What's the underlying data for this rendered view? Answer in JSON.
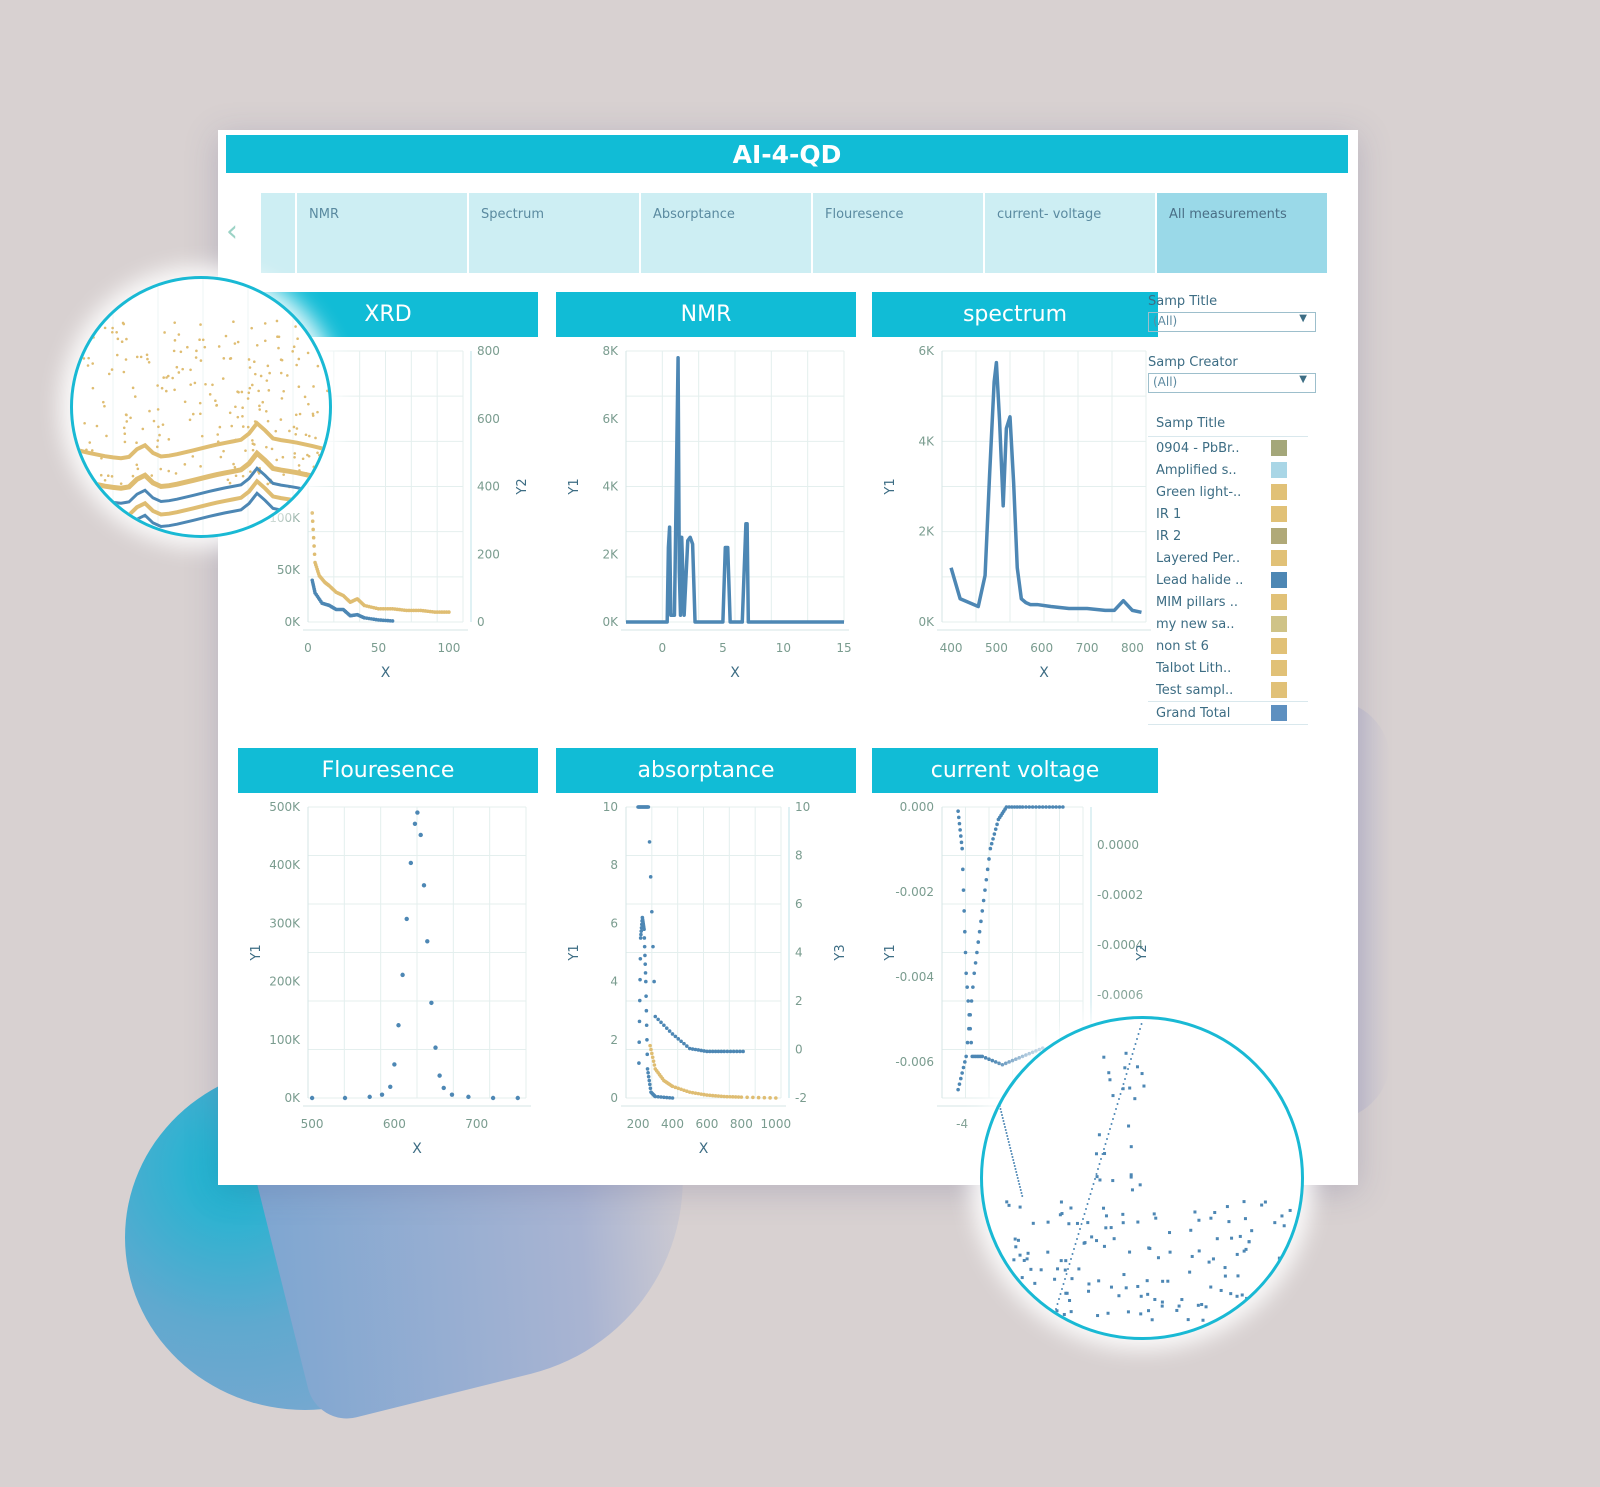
{
  "app": {
    "title": "AI-4-QD"
  },
  "nav": {
    "tabs": [
      {
        "label": "NMR"
      },
      {
        "label": "Spectrum"
      },
      {
        "label": "Absorptance"
      },
      {
        "label": "Flouresence"
      },
      {
        "label": "current- voltage"
      },
      {
        "label": "All measurements",
        "active": true
      }
    ],
    "prev_icon": "chevron-left-icon",
    "next_icon": "chevron-right-icon"
  },
  "filters": {
    "samp_title": {
      "label": "Samp Title",
      "value": "(All)"
    },
    "samp_creator": {
      "label": "Samp Creator",
      "value": "(All)"
    }
  },
  "legend": {
    "title": "Samp Title",
    "items": [
      {
        "label": "0904 - PbBr..",
        "color": "#a4a77a"
      },
      {
        "label": "Amplified s..",
        "color": "#a9d6e6"
      },
      {
        "label": "Green light-..",
        "color": "#e1c177"
      },
      {
        "label": "IR 1",
        "color": "#e1c177"
      },
      {
        "label": "IR 2",
        "color": "#b0a978"
      },
      {
        "label": "Layered Per..",
        "color": "#e1c177"
      },
      {
        "label": "Lead halide ..",
        "color": "#4d87b4"
      },
      {
        "label": "MIM pillars ..",
        "color": "#e1c177"
      },
      {
        "label": "my new sa..",
        "color": "#cfc387"
      },
      {
        "label": "non st 6",
        "color": "#e1c177"
      },
      {
        "label": "Talbot Lith..",
        "color": "#e1c177"
      },
      {
        "label": "Test sampl..",
        "color": "#e1c177"
      }
    ],
    "total": {
      "label": "Grand Total",
      "color": "#5e90c0"
    }
  },
  "colors": {
    "accent": "#11bcd6",
    "blue": "#4d87b4",
    "gold": "#dfbd72",
    "tab": "#cdeef3",
    "tab_active": "#9ad9e8"
  },
  "chart_data": [
    {
      "type": "scatter",
      "title": "XRD",
      "xlabel": "X",
      "ylabel": "",
      "y2label": "Y2",
      "xlim": [
        0,
        110
      ],
      "xticks": [
        "0",
        "50",
        "100"
      ],
      "yticks": [
        "0K",
        "50K",
        "100K"
      ],
      "y2ticks": [
        "0",
        "200",
        "400",
        "600",
        "800"
      ],
      "series": [
        {
          "color": "#4d87b4",
          "x": [
            3,
            5,
            10,
            15,
            20,
            25,
            30,
            35,
            40,
            50,
            60
          ],
          "y": [
            20000,
            14000,
            9000,
            8000,
            6000,
            6000,
            3000,
            3500,
            2000,
            1000,
            500
          ]
        },
        {
          "color": "#dfbd72",
          "x": [
            3,
            5,
            8,
            12,
            15,
            20,
            25,
            30,
            35,
            40,
            50,
            60,
            70,
            80,
            90,
            100
          ],
          "y": [
            330,
            180,
            140,
            120,
            110,
            90,
            80,
            60,
            70,
            50,
            40,
            40,
            35,
            35,
            30,
            30
          ]
        }
      ]
    },
    {
      "type": "line",
      "title": "NMR",
      "xlabel": "X",
      "ylabel": "Y1",
      "xlim": [
        -3,
        15
      ],
      "ylim": [
        0,
        8000
      ],
      "xticks": [
        "0",
        "5",
        "10",
        "15"
      ],
      "yticks": [
        "0K",
        "2K",
        "4K",
        "6K",
        "8K"
      ],
      "series": [
        {
          "color": "#4d87b4",
          "x": [
            -3,
            0.4,
            0.5,
            0.6,
            0.7,
            1.0,
            1.3,
            1.4,
            1.5,
            1.6,
            1.8,
            2.1,
            2.3,
            2.5,
            2.7,
            3.0,
            5.0,
            5.2,
            5.4,
            5.6,
            6.6,
            6.9,
            7.0,
            7.1,
            7.2,
            15
          ],
          "y": [
            0,
            0,
            2200,
            2800,
            200,
            200,
            7800,
            1500,
            200,
            2500,
            200,
            2400,
            2500,
            2300,
            0,
            0,
            0,
            2200,
            2200,
            0,
            0,
            2900,
            2900,
            0,
            0,
            0
          ]
        }
      ]
    },
    {
      "type": "line",
      "title": "spectrum",
      "xlabel": "X",
      "ylabel": "Y1",
      "xlim": [
        380,
        830
      ],
      "ylim": [
        0,
        7000
      ],
      "xticks": [
        "400",
        "500",
        "600",
        "700",
        "800"
      ],
      "yticks": [
        "0K",
        "2K",
        "4K",
        "6K"
      ],
      "series": [
        {
          "color": "#4d87b4",
          "x": [
            400,
            405,
            420,
            440,
            460,
            475,
            485,
            495,
            500,
            507,
            515,
            522,
            530,
            538,
            546,
            555,
            565,
            575,
            590,
            620,
            660,
            700,
            740,
            760,
            780,
            800,
            820
          ],
          "y": [
            1400,
            1200,
            600,
            500,
            400,
            1200,
            3800,
            6200,
            6700,
            5200,
            3000,
            5000,
            5300,
            3600,
            1400,
            600,
            500,
            450,
            450,
            400,
            350,
            350,
            300,
            300,
            550,
            300,
            250
          ]
        }
      ]
    },
    {
      "type": "scatter",
      "title": "Flouresence",
      "xlabel": "X",
      "ylabel": "Y1",
      "xlim": [
        495,
        760
      ],
      "ylim": [
        0,
        520000
      ],
      "xticks": [
        "500",
        "600",
        "700"
      ],
      "yticks": [
        "0K",
        "100K",
        "200K",
        "300K",
        "400K",
        "500K"
      ],
      "series": [
        {
          "color": "#4d87b4",
          "x": [
            500,
            540,
            570,
            585,
            595,
            600,
            605,
            610,
            615,
            620,
            625,
            628,
            632,
            636,
            640,
            645,
            650,
            655,
            660,
            670,
            690,
            720,
            750
          ],
          "y": [
            0,
            0,
            2000,
            6000,
            20000,
            60000,
            130000,
            220000,
            320000,
            420000,
            490000,
            510000,
            470000,
            380000,
            280000,
            170000,
            90000,
            40000,
            18000,
            6000,
            2000,
            0,
            0
          ]
        }
      ]
    },
    {
      "type": "scatter",
      "title": "absorptance",
      "xlabel": "X",
      "ylabel": "Y1",
      "y3label": "Y3",
      "xlim": [
        130,
        1030
      ],
      "ylim": [
        0,
        10
      ],
      "xticks": [
        "200",
        "400",
        "600",
        "800",
        "1000"
      ],
      "yticks": [
        "0",
        "2",
        "4",
        "6",
        "8",
        "10"
      ],
      "y3ticks": [
        "-2",
        "0",
        "2",
        "4",
        "6",
        "8",
        "10"
      ],
      "series": [
        {
          "color": "#4d87b4",
          "x": [
            200,
            220,
            240,
            260,
            300,
            400,
            500,
            600,
            700,
            810
          ],
          "y": [
            10,
            10,
            10,
            10,
            2.8,
            2.2,
            1.7,
            1.6,
            1.6,
            1.6
          ]
        },
        {
          "color": "#4d87b4",
          "x": [
            205,
            215,
            225,
            235,
            245,
            255,
            275,
            300,
            400
          ],
          "y": [
            1.2,
            5.5,
            6.2,
            5.8,
            4.0,
            1.0,
            0.2,
            0.05,
            0.0
          ]
        },
        {
          "color": "#dfbd72",
          "x": [
            270,
            300,
            350,
            400,
            500,
            600,
            700,
            800,
            1000
          ],
          "y": [
            1.8,
            1.0,
            0.6,
            0.4,
            0.2,
            0.1,
            0.05,
            0.03,
            0.0
          ]
        }
      ]
    },
    {
      "type": "scatter",
      "title": "current voltage",
      "xlabel": "",
      "ylabel": "Y1",
      "y2label": "Y2",
      "xlim": [
        -5,
        2
      ],
      "ylim": [
        -0.007,
        0.0
      ],
      "xticks": [
        "-4"
      ],
      "yticks": [
        "0.000",
        "-0.002",
        "-0.004",
        "-0.006"
      ],
      "y2ticks": [
        "0.0000",
        "-0.0002",
        "-0.0004",
        "-0.0006"
      ],
      "series": [
        {
          "color": "#4d87b4",
          "x": [
            -4.2,
            -4.0,
            -3.8,
            -3.5,
            -3.0,
            -2.0,
            -1.0,
            0.0,
            1.0
          ],
          "y": [
            -0.0001,
            -0.001,
            -0.004,
            -0.006,
            -0.006,
            -0.0062,
            -0.006,
            -0.0058,
            -0.006
          ]
        },
        {
          "color": "#4d87b4",
          "x": [
            -4.2,
            -3.8,
            -3.4,
            -3.0,
            -2.6,
            -2.2,
            -1.8,
            -1.0,
            0.0,
            1.0
          ],
          "y": [
            -0.0068,
            -0.006,
            -0.004,
            -0.0025,
            -0.001,
            -0.0003,
            0.0,
            0.0,
            0.0,
            0.0
          ]
        }
      ]
    }
  ]
}
